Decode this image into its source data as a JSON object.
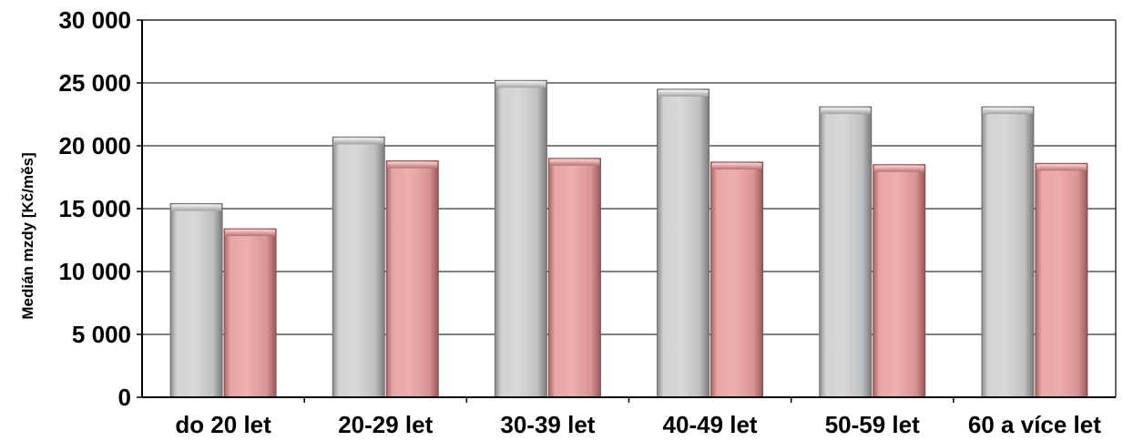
{
  "chart_data": {
    "type": "bar",
    "title": "",
    "xlabel": "",
    "ylabel": "Medián  mzdy  [Kč/měs]",
    "ylim": [
      0,
      30000
    ],
    "yticks": [
      0,
      5000,
      10000,
      15000,
      20000,
      25000,
      30000
    ],
    "ytick_labels": [
      "0",
      "5 000",
      "10 000",
      "15 000",
      "20 000",
      "25 000",
      "30 000"
    ],
    "grid": true,
    "legend": "none",
    "categories": [
      "do 20 let",
      "20-29 let",
      "30-39 let",
      "40-49 let",
      "50-59 let",
      "60 a více let"
    ],
    "series": [
      {
        "values": [
          15400,
          20700,
          25200,
          24500,
          23100,
          23100
        ],
        "color": "#c8c8c8"
      },
      {
        "values": [
          13400,
          18800,
          19000,
          18700,
          18500,
          18600
        ],
        "color": "#e6a0a0"
      }
    ]
  }
}
